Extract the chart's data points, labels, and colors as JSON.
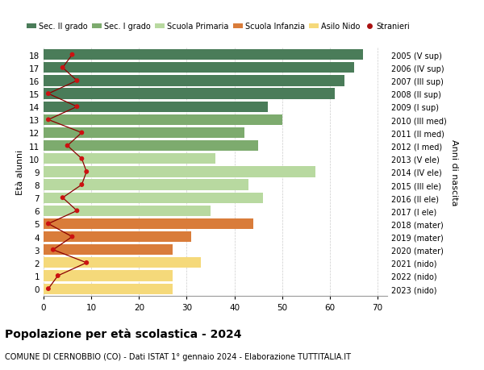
{
  "ages": [
    18,
    17,
    16,
    15,
    14,
    13,
    12,
    11,
    10,
    9,
    8,
    7,
    6,
    5,
    4,
    3,
    2,
    1,
    0
  ],
  "years": [
    "2005 (V sup)",
    "2006 (IV sup)",
    "2007 (III sup)",
    "2008 (II sup)",
    "2009 (I sup)",
    "2010 (III med)",
    "2011 (II med)",
    "2012 (I med)",
    "2013 (V ele)",
    "2014 (IV ele)",
    "2015 (III ele)",
    "2016 (II ele)",
    "2017 (I ele)",
    "2018 (mater)",
    "2019 (mater)",
    "2020 (mater)",
    "2021 (nido)",
    "2022 (nido)",
    "2023 (nido)"
  ],
  "bar_values": [
    67,
    65,
    63,
    61,
    47,
    50,
    42,
    45,
    36,
    57,
    43,
    46,
    35,
    44,
    31,
    27,
    33,
    27,
    27
  ],
  "bar_colors": [
    "#4a7c59",
    "#4a7c59",
    "#4a7c59",
    "#4a7c59",
    "#4a7c59",
    "#7dab6e",
    "#7dab6e",
    "#7dab6e",
    "#b8d9a0",
    "#b8d9a0",
    "#b8d9a0",
    "#b8d9a0",
    "#b8d9a0",
    "#d97c3a",
    "#d97c3a",
    "#d97c3a",
    "#f5d97a",
    "#f5d97a",
    "#f5d97a"
  ],
  "stranieri_x": [
    6,
    4,
    7,
    1,
    7,
    1,
    8,
    5,
    8,
    9,
    8,
    4,
    7,
    1,
    6,
    2,
    9,
    3,
    1
  ],
  "legend_labels": [
    "Sec. II grado",
    "Sec. I grado",
    "Scuola Primaria",
    "Scuola Infanzia",
    "Asilo Nido",
    "Stranieri"
  ],
  "legend_colors": [
    "#4a7c59",
    "#7dab6e",
    "#b8d9a0",
    "#d97c3a",
    "#f5d97a",
    "#aa1111"
  ],
  "title": "Popolazione per età scolastica - 2024",
  "subtitle": "COMUNE DI CERNOBBIO (CO) - Dati ISTAT 1° gennaio 2024 - Elaborazione TUTTITALIA.IT",
  "ylabel": "Età alunni",
  "right_ylabel": "Anni di nascita",
  "xlim": [
    0,
    72
  ],
  "ylim": [
    -0.55,
    18.55
  ],
  "xticks": [
    0,
    10,
    20,
    30,
    40,
    50,
    60,
    70
  ],
  "bg_color": "#ffffff",
  "grid_color": "#cccccc",
  "bar_height": 0.82,
  "stranieri_line_color": "#8b0000",
  "stranieri_dot_color": "#cc1111"
}
